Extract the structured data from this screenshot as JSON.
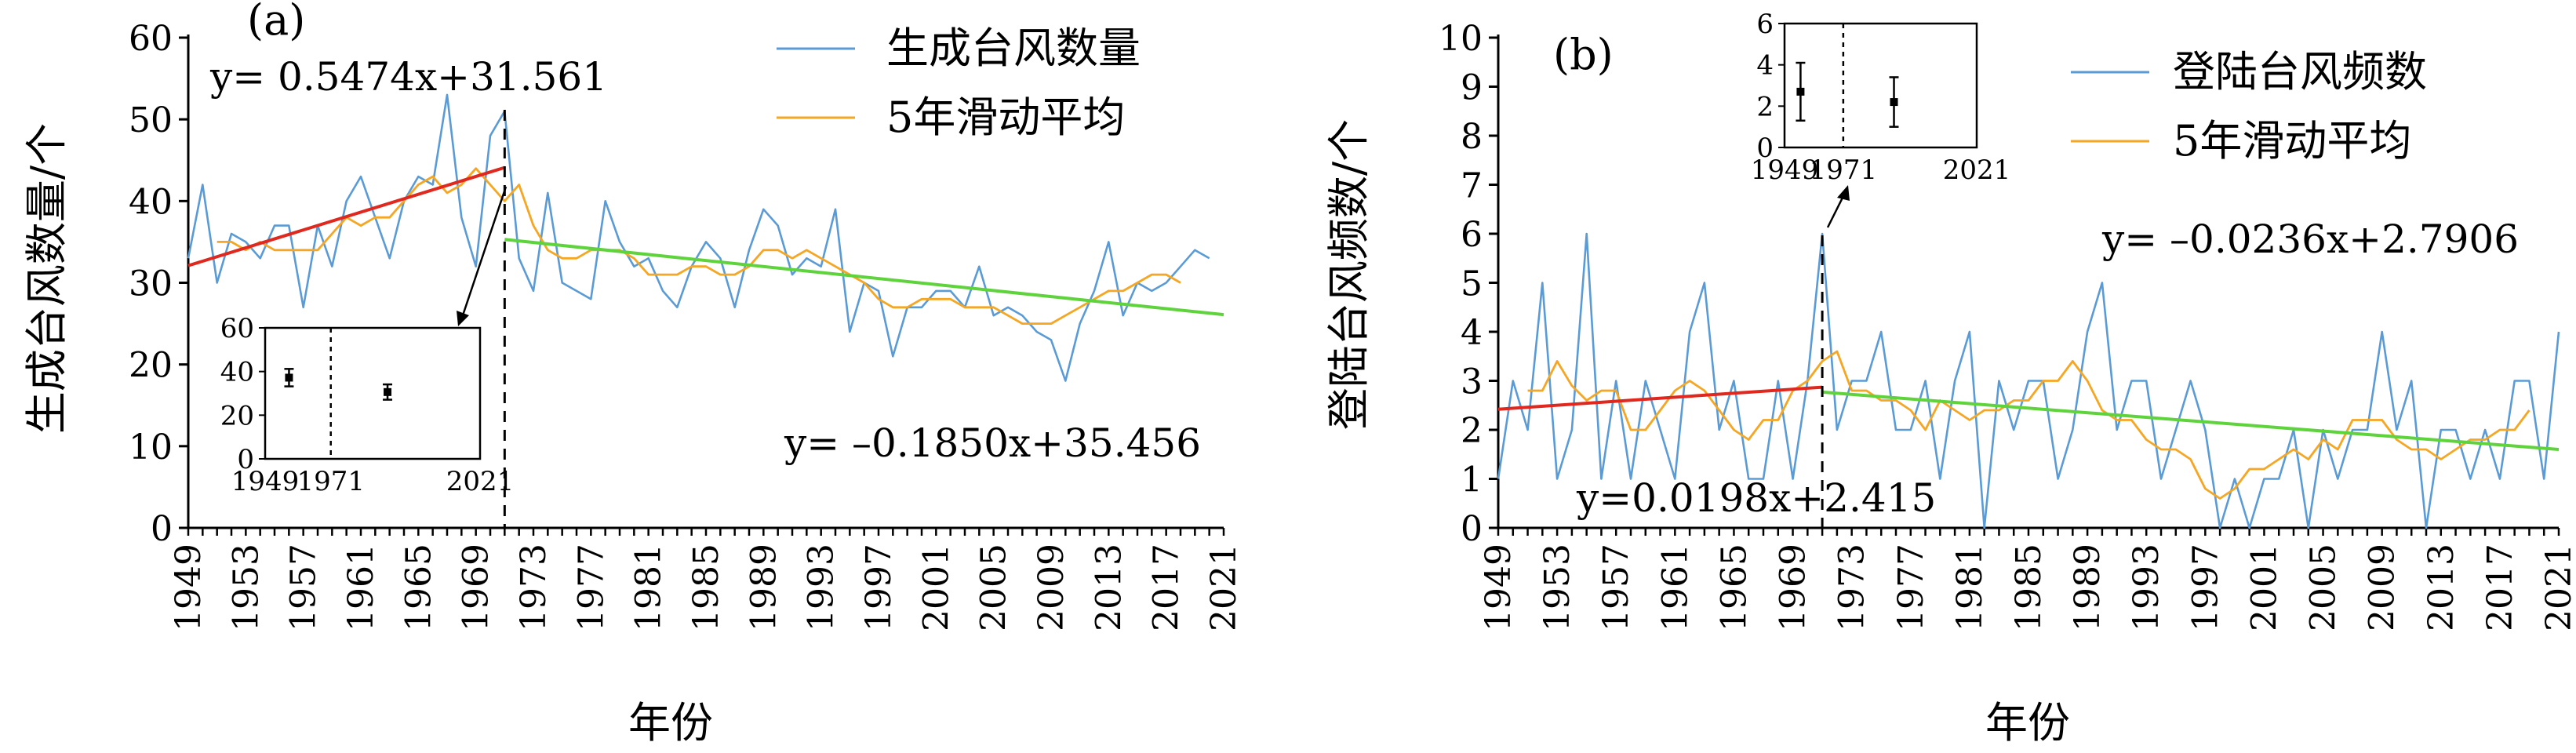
{
  "chart_data": [
    {
      "type": "line",
      "panel_label": "(a)",
      "xlabel": "年份",
      "ylabel": "生成台风数量/个",
      "xlim": [
        1949,
        2021
      ],
      "ylim": [
        0,
        60
      ],
      "yticks": [
        0,
        10,
        20,
        30,
        40,
        50,
        60
      ],
      "xticks": [
        "1949",
        "1953",
        "1957",
        "1961",
        "1965",
        "1969",
        "1973",
        "1977",
        "1981",
        "1985",
        "1989",
        "1993",
        "1997",
        "2001",
        "2005",
        "2009",
        "2013",
        "2017",
        "2021"
      ],
      "breakpoint_year": 1971,
      "series": [
        {
          "name": "生成台风数量",
          "color": "#5b9bd5",
          "x": [
            1949,
            1950,
            1951,
            1952,
            1953,
            1954,
            1955,
            1956,
            1957,
            1958,
            1959,
            1960,
            1961,
            1962,
            1963,
            1964,
            1965,
            1966,
            1967,
            1968,
            1969,
            1970,
            1971,
            1972,
            1973,
            1974,
            1975,
            1976,
            1977,
            1978,
            1979,
            1980,
            1981,
            1982,
            1983,
            1984,
            1985,
            1986,
            1987,
            1988,
            1989,
            1990,
            1991,
            1992,
            1993,
            1994,
            1995,
            1996,
            1997,
            1998,
            1999,
            2000,
            2001,
            2002,
            2003,
            2004,
            2005,
            2006,
            2007,
            2008,
            2009,
            2010,
            2011,
            2012,
            2013,
            2014,
            2015,
            2016,
            2017,
            2018,
            2019,
            2020
          ],
          "y": [
            33,
            42,
            30,
            36,
            35,
            33,
            37,
            37,
            27,
            37,
            32,
            40,
            43,
            38,
            33,
            40,
            43,
            42,
            53,
            38,
            32,
            48,
            51,
            33,
            29,
            41,
            30,
            29,
            28,
            40,
            35,
            32,
            33,
            29,
            27,
            32,
            35,
            33,
            27,
            34,
            39,
            37,
            31,
            33,
            32,
            39,
            24,
            30,
            29,
            21,
            27,
            27,
            29,
            29,
            27,
            32,
            26,
            27,
            26,
            24,
            23,
            18,
            25,
            29,
            35,
            26,
            30,
            29,
            30,
            32,
            34,
            33
          ]
        },
        {
          "name": "5年滑动平均",
          "color": "#f5a623",
          "x": [
            1951,
            1952,
            1953,
            1954,
            1955,
            1956,
            1957,
            1958,
            1959,
            1960,
            1961,
            1962,
            1963,
            1964,
            1965,
            1966,
            1967,
            1968,
            1969,
            1970,
            1971,
            1972,
            1973,
            1974,
            1975,
            1976,
            1977,
            1978,
            1979,
            1980,
            1981,
            1982,
            1983,
            1984,
            1985,
            1986,
            1987,
            1988,
            1989,
            1990,
            1991,
            1992,
            1993,
            1994,
            1995,
            1996,
            1997,
            1998,
            1999,
            2000,
            2001,
            2002,
            2003,
            2004,
            2005,
            2006,
            2007,
            2008,
            2009,
            2010,
            2011,
            2012,
            2013,
            2014,
            2015,
            2016,
            2017,
            2018
          ],
          "y": [
            35,
            35,
            34,
            35,
            34,
            34,
            34,
            34,
            36,
            38,
            37,
            38,
            38,
            40,
            42,
            43,
            41,
            42,
            44,
            42,
            40,
            42,
            37,
            34,
            33,
            33,
            34,
            34,
            34,
            33,
            31,
            31,
            31,
            32,
            32,
            31,
            31,
            32,
            34,
            34,
            33,
            34,
            33,
            32,
            31,
            30,
            28,
            27,
            27,
            28,
            28,
            28,
            27,
            27,
            27,
            26,
            25,
            25,
            25,
            26,
            27,
            28,
            29,
            29,
            30,
            31,
            31,
            30
          ]
        }
      ],
      "trends": [
        {
          "equation": "y= 0.5474x+31.561",
          "color": "#e0281e",
          "x": [
            1949,
            1971
          ],
          "y": [
            32.1,
            44.1
          ]
        },
        {
          "equation": "y= –0.1850x+35.456",
          "color": "#5ed33c",
          "x": [
            1971,
            2021
          ],
          "y": [
            35.3,
            26.1
          ]
        }
      ],
      "inset": {
        "xticks": [
          "1949",
          "1971",
          "2021"
        ],
        "yticks": [
          0,
          20,
          40,
          60
        ],
        "ylim": [
          0,
          60
        ],
        "points": [
          {
            "x": 1957,
            "mean": 37.2,
            "err": 4
          },
          {
            "x": 1990,
            "mean": 30.6,
            "err": 3.5
          }
        ]
      }
    },
    {
      "type": "line",
      "panel_label": "(b)",
      "xlabel": "年份",
      "ylabel": "登陆台风频数/个",
      "xlim": [
        1949,
        2021
      ],
      "ylim": [
        0,
        10
      ],
      "yticks": [
        0,
        1,
        2,
        3,
        4,
        5,
        6,
        7,
        8,
        9,
        10
      ],
      "xticks": [
        "1949",
        "1953",
        "1957",
        "1961",
        "1965",
        "1969",
        "1973",
        "1977",
        "1981",
        "1985",
        "1989",
        "1993",
        "1997",
        "2001",
        "2005",
        "2009",
        "2013",
        "2017",
        "2021"
      ],
      "breakpoint_year": 1971,
      "series": [
        {
          "name": "登陆台风频数",
          "color": "#5b9bd5",
          "x": [
            1949,
            1950,
            1951,
            1952,
            1953,
            1954,
            1955,
            1956,
            1957,
            1958,
            1959,
            1960,
            1961,
            1962,
            1963,
            1964,
            1965,
            1966,
            1967,
            1968,
            1969,
            1970,
            1971,
            1972,
            1973,
            1974,
            1975,
            1976,
            1977,
            1978,
            1979,
            1980,
            1981,
            1982,
            1983,
            1984,
            1985,
            1986,
            1987,
            1988,
            1989,
            1990,
            1991,
            1992,
            1993,
            1994,
            1995,
            1996,
            1997,
            1998,
            1999,
            2000,
            2001,
            2002,
            2003,
            2004,
            2005,
            2006,
            2007,
            2008,
            2009,
            2010,
            2011,
            2012,
            2013,
            2014,
            2015,
            2016,
            2017,
            2018,
            2019,
            2020,
            2021
          ],
          "y": [
            1,
            3,
            2,
            5,
            1,
            2,
            6,
            1,
            3,
            1,
            3,
            2,
            1,
            4,
            5,
            2,
            3,
            1,
            1,
            3,
            1,
            3,
            6,
            2,
            3,
            3,
            4,
            2,
            2,
            3,
            1,
            3,
            4,
            0,
            3,
            2,
            3,
            3,
            1,
            2,
            4,
            5,
            2,
            3,
            3,
            1,
            2,
            3,
            2,
            0,
            1,
            0,
            1,
            1,
            2,
            0,
            2,
            1,
            2,
            2,
            4,
            2,
            3,
            0,
            2,
            2,
            1,
            2,
            1,
            3,
            3,
            1,
            4
          ]
        },
        {
          "name": "5年滑动平均",
          "color": "#f5a623",
          "x": [
            1951,
            1952,
            1953,
            1954,
            1955,
            1956,
            1957,
            1958,
            1959,
            1960,
            1961,
            1962,
            1963,
            1964,
            1965,
            1966,
            1967,
            1968,
            1969,
            1970,
            1971,
            1972,
            1973,
            1974,
            1975,
            1976,
            1977,
            1978,
            1979,
            1980,
            1981,
            1982,
            1983,
            1984,
            1985,
            1986,
            1987,
            1988,
            1989,
            1990,
            1991,
            1992,
            1993,
            1994,
            1995,
            1996,
            1997,
            1998,
            1999,
            2000,
            2001,
            2002,
            2003,
            2004,
            2005,
            2006,
            2007,
            2008,
            2009,
            2010,
            2011,
            2012,
            2013,
            2014,
            2015,
            2016,
            2017,
            2018,
            2019
          ],
          "y": [
            2.8,
            2.8,
            3.4,
            2.9,
            2.6,
            2.8,
            2.8,
            2.0,
            2.0,
            2.4,
            2.8,
            3.0,
            2.8,
            2.4,
            2.0,
            1.8,
            2.2,
            2.2,
            2.8,
            3.0,
            3.4,
            3.6,
            2.8,
            2.8,
            2.6,
            2.6,
            2.4,
            2.0,
            2.6,
            2.4,
            2.2,
            2.4,
            2.4,
            2.6,
            2.6,
            3.0,
            3.0,
            3.4,
            3.0,
            2.4,
            2.2,
            2.2,
            1.8,
            1.6,
            1.6,
            1.4,
            0.8,
            0.6,
            0.8,
            1.2,
            1.2,
            1.4,
            1.6,
            1.4,
            1.8,
            1.6,
            2.2,
            2.2,
            2.2,
            1.8,
            1.6,
            1.6,
            1.4,
            1.6,
            1.8,
            1.8,
            2.0,
            2.0,
            2.4
          ]
        }
      ],
      "trends": [
        {
          "equation": "y=0.0198x+2.415",
          "color": "#e0281e",
          "x": [
            1949,
            1971
          ],
          "y": [
            2.42,
            2.87
          ]
        },
        {
          "equation": "y= –0.0236x+2.7906",
          "color": "#5ed33c",
          "x": [
            1971,
            2021
          ],
          "y": [
            2.77,
            1.6
          ]
        }
      ],
      "inset": {
        "xticks": [
          "1949",
          "1971",
          "2021"
        ],
        "yticks": [
          0,
          2,
          4,
          6
        ],
        "ylim": [
          0,
          6
        ],
        "points": [
          {
            "x": 1955,
            "mean": 2.7,
            "err": 1.4
          },
          {
            "x": 1990,
            "mean": 2.2,
            "err": 1.2
          }
        ]
      }
    }
  ]
}
